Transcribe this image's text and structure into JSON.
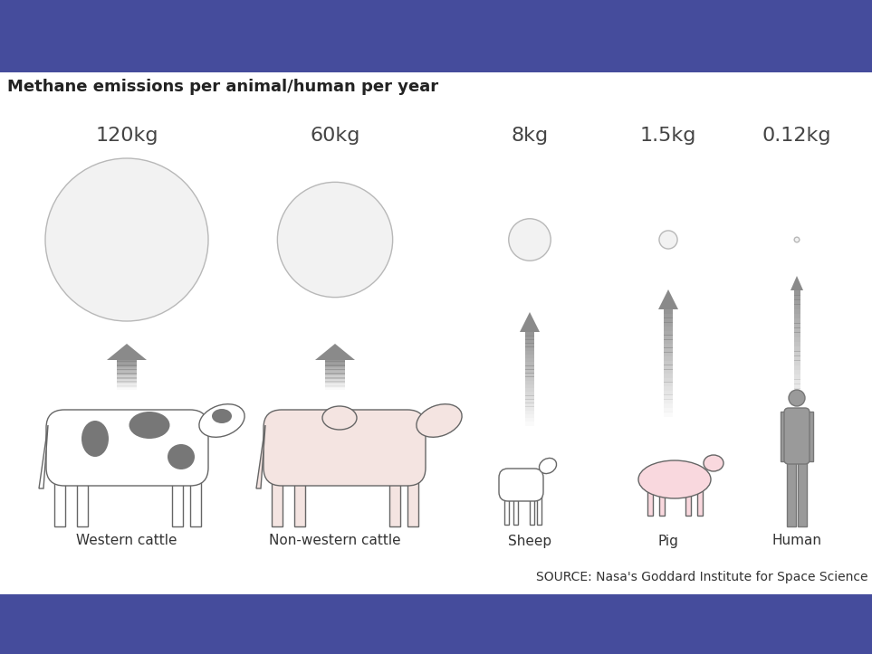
{
  "chart_data": {
    "type": "bubble",
    "title": "Methane emissions per animal/human per year",
    "categories": [
      "Western cattle",
      "Non-western cattle",
      "Sheep",
      "Pig",
      "Human"
    ],
    "values": [
      120,
      60,
      8,
      1.5,
      0.12
    ],
    "value_labels": [
      "120kg",
      "60kg",
      "8kg",
      "1.5kg",
      "0.12kg"
    ],
    "data_labels": true,
    "tick_labels": false,
    "color": "#f2f2f2",
    "source": "SOURCE: Nasa's Goddard Institute for Space Science"
  }
}
